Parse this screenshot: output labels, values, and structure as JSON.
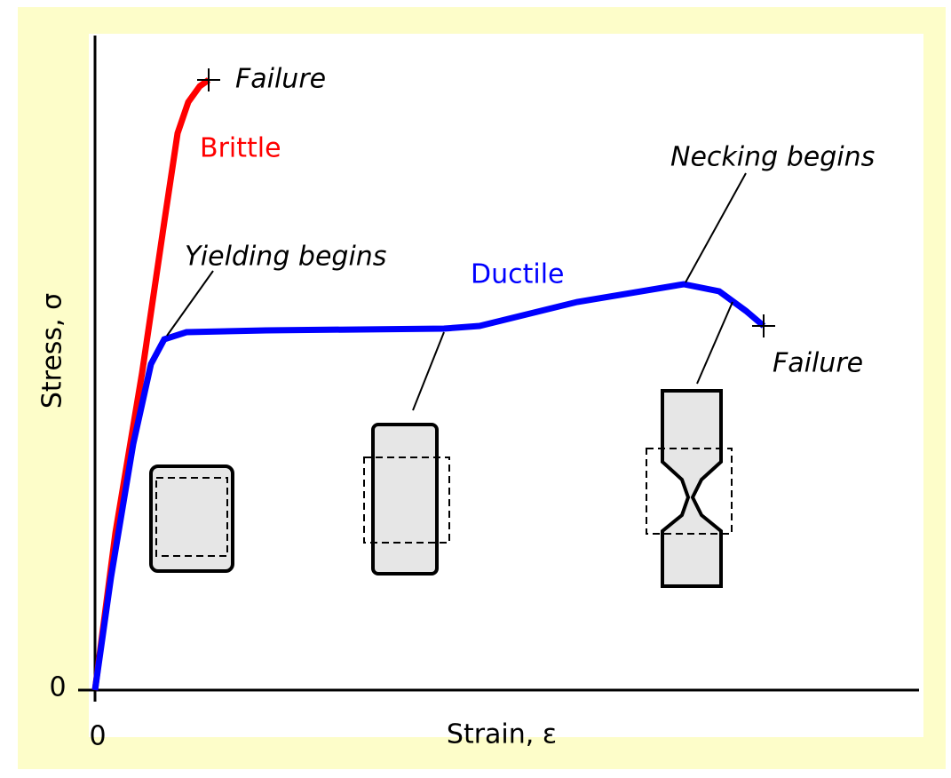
{
  "labels": {
    "brittle_failure": "Failure",
    "brittle": "Brittle",
    "yielding": "Yielding begins",
    "ductile": "Ductile",
    "necking": "Necking begins",
    "ductile_failure": "Failure"
  },
  "axes": {
    "y_label": "Stress, σ",
    "x_label": "Strain, ε",
    "y_origin": "0",
    "x_origin": "0"
  }
}
